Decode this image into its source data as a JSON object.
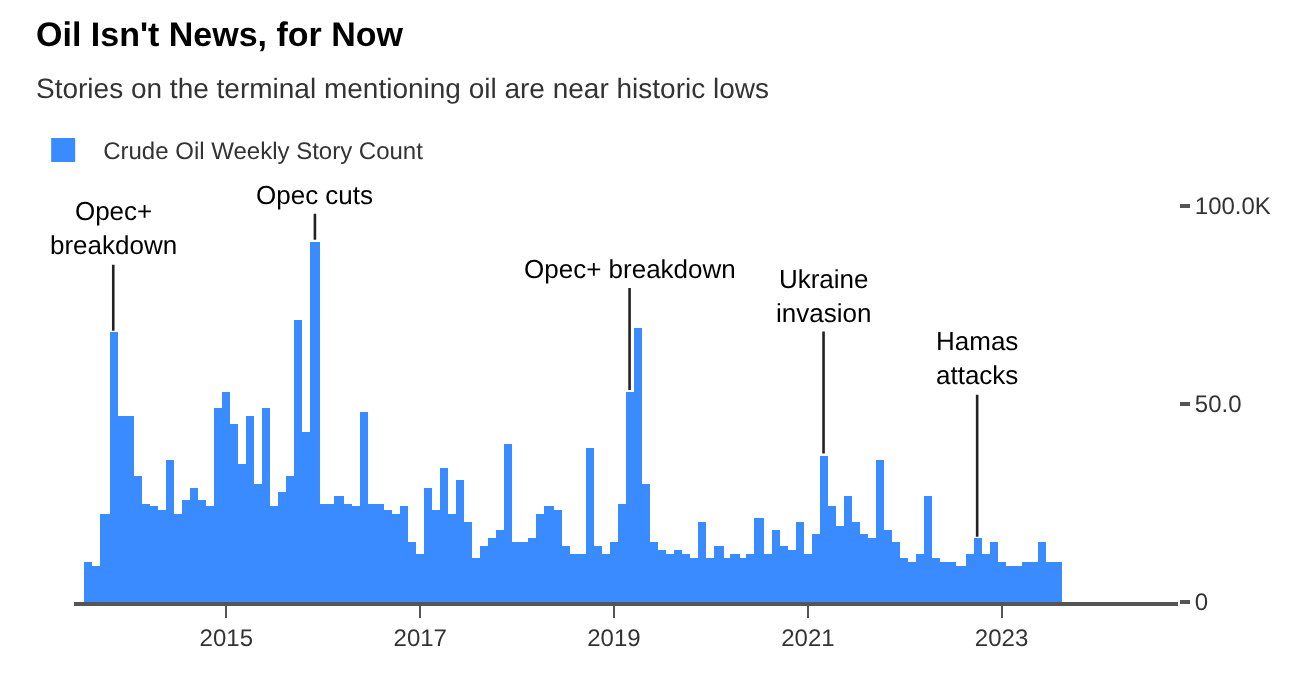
{
  "chart_data": {
    "type": "bar",
    "title": "Oil Isn't News, for Now",
    "subtitle": "Stories on the terminal mentioning oil are near historic lows",
    "x": [
      "2013-08",
      "2013-09",
      "2013-10",
      "2013-11",
      "2013-12",
      "2014-01",
      "2014-02",
      "2014-03",
      "2014-04",
      "2014-05",
      "2014-06",
      "2014-07",
      "2014-08",
      "2014-09",
      "2014-10",
      "2014-11",
      "2014-12",
      "2015-01",
      "2015-02",
      "2015-03",
      "2015-04",
      "2015-05",
      "2015-06",
      "2015-07",
      "2015-08",
      "2015-09",
      "2015-10",
      "2015-11",
      "2015-12",
      "2016-01",
      "2016-02",
      "2016-03",
      "2016-04",
      "2016-05",
      "2016-06",
      "2016-07",
      "2016-08",
      "2016-09",
      "2016-10",
      "2016-11",
      "2016-12",
      "2017-01",
      "2017-02",
      "2017-03",
      "2017-04",
      "2017-05",
      "2017-06",
      "2017-07",
      "2017-08",
      "2017-09",
      "2017-10",
      "2017-11",
      "2017-12",
      "2018-01",
      "2018-02",
      "2018-03",
      "2018-04",
      "2018-05",
      "2018-06",
      "2018-07",
      "2018-08",
      "2018-09",
      "2018-10",
      "2018-11",
      "2018-12",
      "2019-01",
      "2019-02",
      "2019-03",
      "2019-04",
      "2019-05",
      "2019-06",
      "2019-07",
      "2019-08",
      "2019-09",
      "2019-10",
      "2019-11",
      "2019-12",
      "2020-01",
      "2020-02",
      "2020-03",
      "2020-04",
      "2020-05",
      "2020-06",
      "2020-07",
      "2020-08",
      "2020-09",
      "2020-10",
      "2020-11",
      "2020-12",
      "2021-01",
      "2021-02",
      "2021-03",
      "2021-04",
      "2021-05",
      "2021-06",
      "2021-07",
      "2021-08",
      "2021-09",
      "2021-10",
      "2021-11",
      "2021-12",
      "2022-01",
      "2022-02",
      "2022-03",
      "2022-04",
      "2022-05",
      "2022-06",
      "2022-07",
      "2022-08",
      "2022-09",
      "2022-10",
      "2022-11",
      "2022-12",
      "2023-01",
      "2023-02",
      "2023-03",
      "2023-04",
      "2023-05",
      "2023-06",
      "2023-07",
      "2023-08"
    ],
    "series": [
      {
        "name": "Crude Oil Weekly Story Count",
        "color": "#3a8bff",
        "values": [
          10,
          9,
          22,
          68,
          47,
          47,
          32,
          25,
          24,
          23,
          36,
          22,
          26,
          29,
          26,
          24,
          49,
          53,
          45,
          35,
          47,
          30,
          49,
          24,
          28,
          32,
          71,
          43,
          91,
          25,
          25,
          27,
          25,
          24,
          48,
          25,
          25,
          23,
          22,
          24,
          15,
          12,
          29,
          23,
          34,
          22,
          31,
          20,
          11,
          14,
          16,
          18,
          40,
          15,
          15,
          16,
          22,
          24,
          23,
          14,
          12,
          12,
          39,
          14,
          12,
          15,
          25,
          53,
          69,
          30,
          15,
          13,
          12,
          13,
          12,
          11,
          20,
          11,
          14,
          11,
          12,
          11,
          12,
          21,
          12,
          18,
          14,
          13,
          20,
          12,
          17,
          37,
          24,
          19,
          27,
          20,
          17,
          16,
          36,
          18,
          15,
          11,
          10,
          12,
          27,
          11,
          10,
          10,
          9,
          12,
          16,
          12,
          15,
          10,
          9,
          9,
          10,
          10,
          15,
          10,
          10
        ]
      }
    ],
    "xlim": [
      "2013-06-06",
      "2024-10-27"
    ],
    "xticks": [
      "2015",
      "2017",
      "2019",
      "2021",
      "2023"
    ],
    "ylim": [
      0,
      100
    ],
    "yticks": [
      0,
      {
        "value": 50,
        "label": "50.0"
      },
      {
        "value": 100,
        "label": "100.0K"
      }
    ],
    "legend": "top left",
    "annotations": [
      {
        "text": "Opec+\nbreakdown",
        "x": "2013-11",
        "y": 68
      },
      {
        "text": "Opec cuts",
        "x": "2015-12",
        "y": 91
      },
      {
        "text": "Opec+ breakdown",
        "x": "2019-03",
        "y": 53
      },
      {
        "text": "Ukraine\ninvasion",
        "x": "2021-03",
        "y": 37
      },
      {
        "text": "Hamas\nattacks",
        "x": "2022-10",
        "y": 16
      }
    ]
  }
}
